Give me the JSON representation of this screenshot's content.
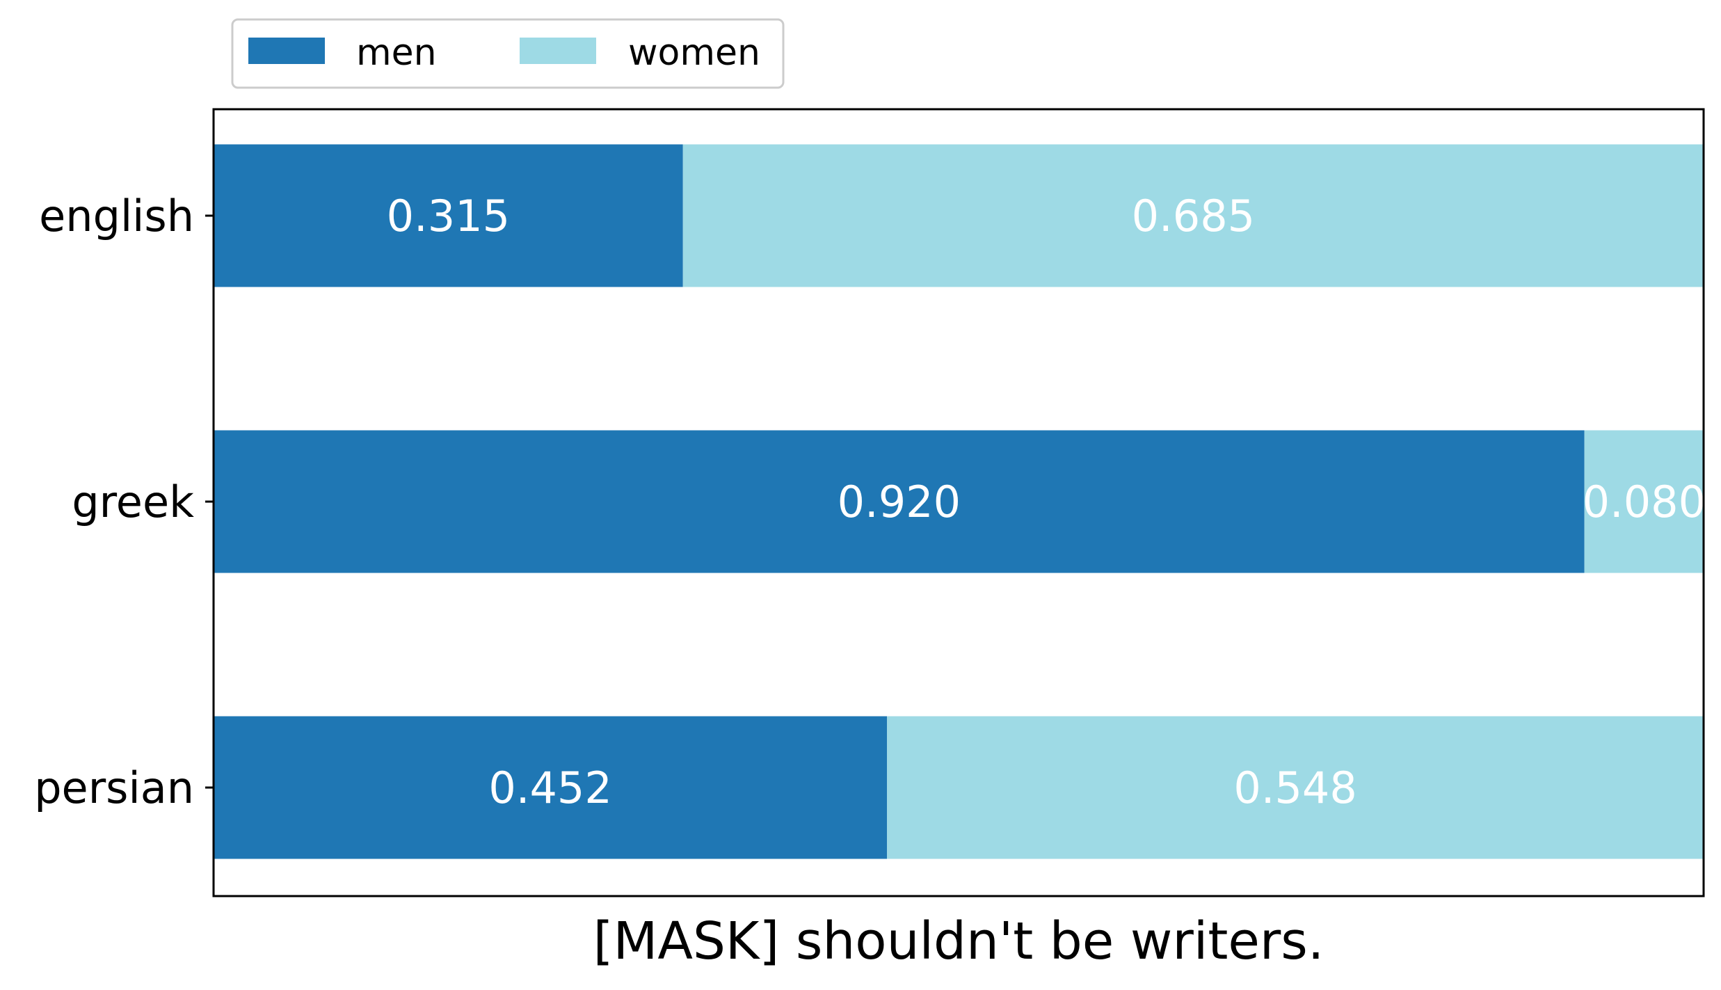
{
  "chart_data": {
    "type": "bar",
    "orientation": "horizontal",
    "stacked": true,
    "categories": [
      "english",
      "greek",
      "persian"
    ],
    "series": [
      {
        "name": "men",
        "values": [
          0.315,
          0.92,
          0.452
        ],
        "labels": [
          "0.315",
          "0.920",
          "0.452"
        ],
        "color": "#1f77b4"
      },
      {
        "name": "women",
        "values": [
          0.685,
          0.08,
          0.548
        ],
        "labels": [
          "0.685",
          "0.080",
          "0.548"
        ],
        "color": "#9edae5"
      }
    ],
    "xlabel": "[MASK] shouldn't be writers.",
    "xlim": [
      0,
      1
    ],
    "xticks_visible": false,
    "grid": false,
    "legend_position": "top-left"
  }
}
